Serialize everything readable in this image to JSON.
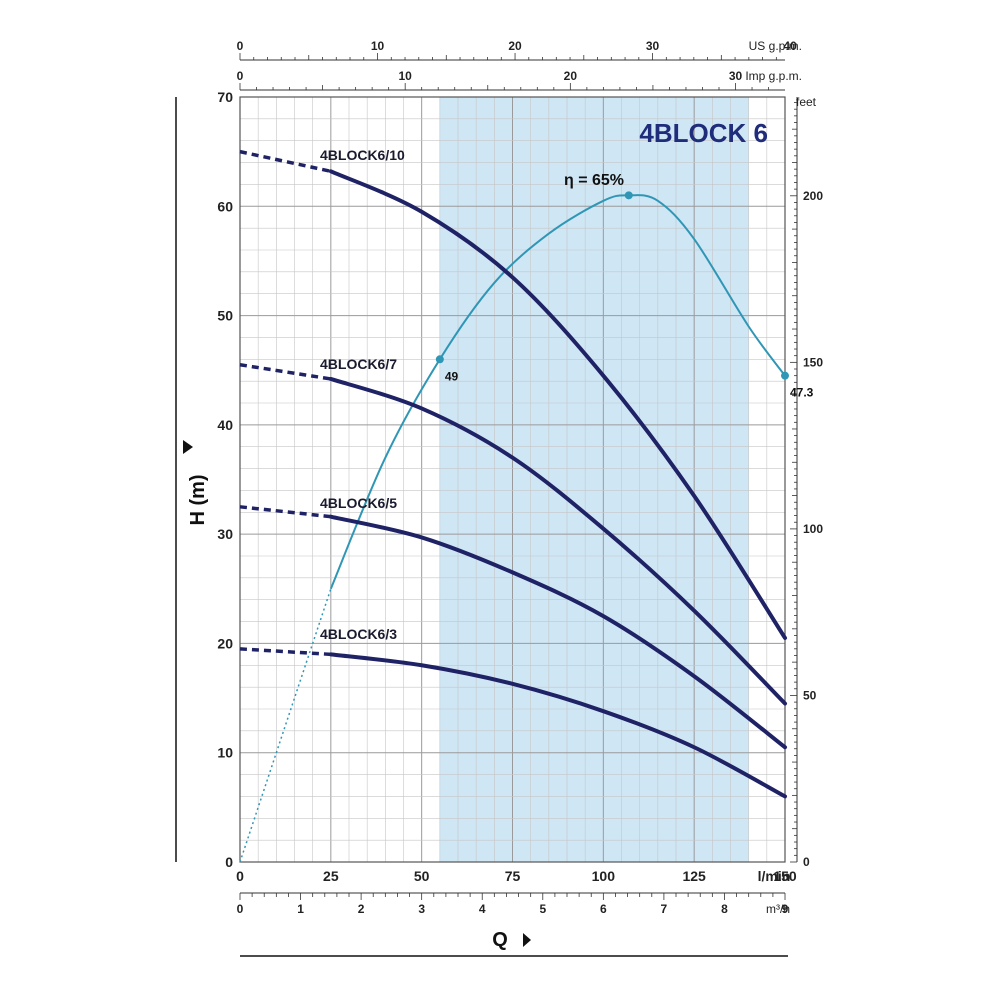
{
  "chart_data": {
    "type": "line",
    "title": "4BLOCK 6",
    "xlabel": "Q",
    "ylabel": "H (m)",
    "x_unit": "l/min",
    "xlim": [
      0,
      150
    ],
    "ylim": [
      0,
      70
    ],
    "x_ticks": [
      "0",
      "25",
      "50",
      "75",
      "100",
      "125",
      "150"
    ],
    "y_ticks": [
      "0",
      "10",
      "20",
      "30",
      "40",
      "50",
      "60",
      "70"
    ],
    "secondary_axes": {
      "us_gpm": {
        "unit": "US g.p.m.",
        "ticks": [
          "0",
          "10",
          "20",
          "30",
          "40"
        ],
        "factor": 3.785
      },
      "imp_gpm": {
        "unit": "Imp g.p.m.",
        "ticks": [
          "0",
          "10",
          "20",
          "30"
        ],
        "factor": 4.546
      },
      "m3h": {
        "unit": "m³/h",
        "ticks": [
          "0",
          "1",
          "2",
          "3",
          "4",
          "5",
          "6",
          "7",
          "8",
          "9"
        ],
        "factor": 16.667
      },
      "feet": {
        "unit": "feet",
        "ticks": [
          "0",
          "50",
          "100",
          "150",
          "200"
        ],
        "factor": 0.3048
      }
    },
    "recommended_range": [
      55,
      140
    ],
    "grid": true,
    "series": [
      {
        "name": "4BLOCK6/10",
        "x": [
          0,
          25,
          50,
          75,
          100,
          125,
          150
        ],
        "y": [
          65,
          63.2,
          59.5,
          53.5,
          44.5,
          33.5,
          20.5
        ],
        "dashed_until": 25
      },
      {
        "name": "4BLOCK6/7",
        "x": [
          0,
          25,
          50,
          75,
          100,
          125,
          150
        ],
        "y": [
          45.5,
          44.2,
          41.5,
          37,
          30.5,
          23,
          14.5
        ],
        "dashed_until": 25
      },
      {
        "name": "4BLOCK6/5",
        "x": [
          0,
          25,
          50,
          75,
          100,
          125,
          150
        ],
        "y": [
          32.5,
          31.6,
          29.7,
          26.5,
          22.5,
          17,
          10.5
        ],
        "dashed_until": 25
      },
      {
        "name": "4BLOCK6/3",
        "x": [
          0,
          25,
          50,
          75,
          100,
          125,
          150
        ],
        "y": [
          19.5,
          19,
          18,
          16.3,
          13.8,
          10.5,
          6
        ],
        "dashed_until": 25
      }
    ],
    "efficiency": {
      "label": "η = 65%",
      "x": [
        0,
        25,
        40,
        55,
        70,
        85,
        100,
        107,
        115,
        125,
        140,
        150
      ],
      "y": [
        0,
        25,
        37,
        46,
        53,
        57.5,
        60.5,
        61,
        60.5,
        57,
        49,
        44.5
      ],
      "dashed_until": 25,
      "markers": [
        {
          "x": 55,
          "y": 46,
          "label": "49"
        },
        {
          "x": 107,
          "y": 61,
          "label": ""
        },
        {
          "x": 150,
          "y": 44.5,
          "label": "47.3"
        }
      ]
    }
  }
}
